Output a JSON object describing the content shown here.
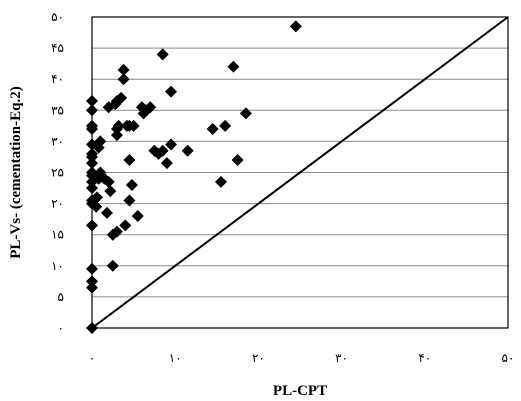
{
  "chart_data": {
    "type": "scatter",
    "xlabel": "PL-CPT",
    "ylabel": "PL-Vs- (cementation-Eq.2)",
    "xlim": [
      0,
      50
    ],
    "ylim": [
      0,
      50
    ],
    "x_ticks": [
      0,
      10,
      20,
      30,
      40,
      50
    ],
    "y_ticks": [
      0,
      5,
      10,
      15,
      20,
      25,
      30,
      35,
      40,
      45,
      50
    ],
    "x_tick_labels": [
      "٠",
      "١٠",
      "٢٠",
      "٣٠",
      "۴٠",
      "۵٠"
    ],
    "y_tick_labels": [
      "٠",
      "۵",
      "١٠",
      "١۵",
      "٢٠",
      "٢۵",
      "٣٠",
      "٣۵",
      "۴٠",
      "۴۵",
      "۵٠"
    ],
    "grid": "horizontal",
    "legend": "none",
    "marker": "diamond",
    "marker_color": "#000000",
    "reference_line": {
      "from": [
        0,
        0
      ],
      "to": [
        50,
        50
      ]
    },
    "points": [
      [
        0,
        0
      ],
      [
        0,
        6.5
      ],
      [
        0,
        7.5
      ],
      [
        0,
        9.5
      ],
      [
        0,
        16.5
      ],
      [
        0,
        20
      ],
      [
        0,
        20.5
      ],
      [
        0,
        22.5
      ],
      [
        0,
        23.5
      ],
      [
        0,
        24.5
      ],
      [
        0,
        25
      ],
      [
        0,
        26.5
      ],
      [
        0,
        27.5
      ],
      [
        0,
        28
      ],
      [
        0,
        29.5
      ],
      [
        0,
        32
      ],
      [
        0,
        32.5
      ],
      [
        0,
        35
      ],
      [
        0,
        36.5
      ],
      [
        0.5,
        19.5
      ],
      [
        0.6,
        21
      ],
      [
        0.8,
        24
      ],
      [
        0.8,
        29
      ],
      [
        1,
        25
      ],
      [
        1,
        30
      ],
      [
        1.5,
        24
      ],
      [
        1.8,
        18.5
      ],
      [
        2,
        23.5
      ],
      [
        2,
        35.5
      ],
      [
        2.2,
        22
      ],
      [
        2.5,
        10
      ],
      [
        2.5,
        15
      ],
      [
        2.8,
        36
      ],
      [
        3,
        15.5
      ],
      [
        3,
        31
      ],
      [
        3,
        32
      ],
      [
        3,
        36.5
      ],
      [
        3.2,
        32.5
      ],
      [
        3.5,
        37
      ],
      [
        3.8,
        40
      ],
      [
        3.8,
        41.5
      ],
      [
        4,
        16.5
      ],
      [
        4.2,
        32.5
      ],
      [
        4.5,
        20.5
      ],
      [
        4.5,
        27
      ],
      [
        4.5,
        32.5
      ],
      [
        4.8,
        23
      ],
      [
        5,
        32.5
      ],
      [
        5.5,
        18
      ],
      [
        6,
        35.5
      ],
      [
        6.2,
        34.5
      ],
      [
        6.5,
        35
      ],
      [
        7,
        35.5
      ],
      [
        7.5,
        28.5
      ],
      [
        8,
        28
      ],
      [
        8.5,
        44
      ],
      [
        8.5,
        28.5
      ],
      [
        9,
        26.5
      ],
      [
        9.5,
        38
      ],
      [
        9.5,
        29.5
      ],
      [
        11.5,
        28.5
      ],
      [
        14.5,
        32
      ],
      [
        15.5,
        23.5
      ],
      [
        16,
        32.5
      ],
      [
        17,
        42
      ],
      [
        17.5,
        27
      ],
      [
        18.5,
        34.5
      ],
      [
        24.5,
        48.5
      ]
    ]
  }
}
